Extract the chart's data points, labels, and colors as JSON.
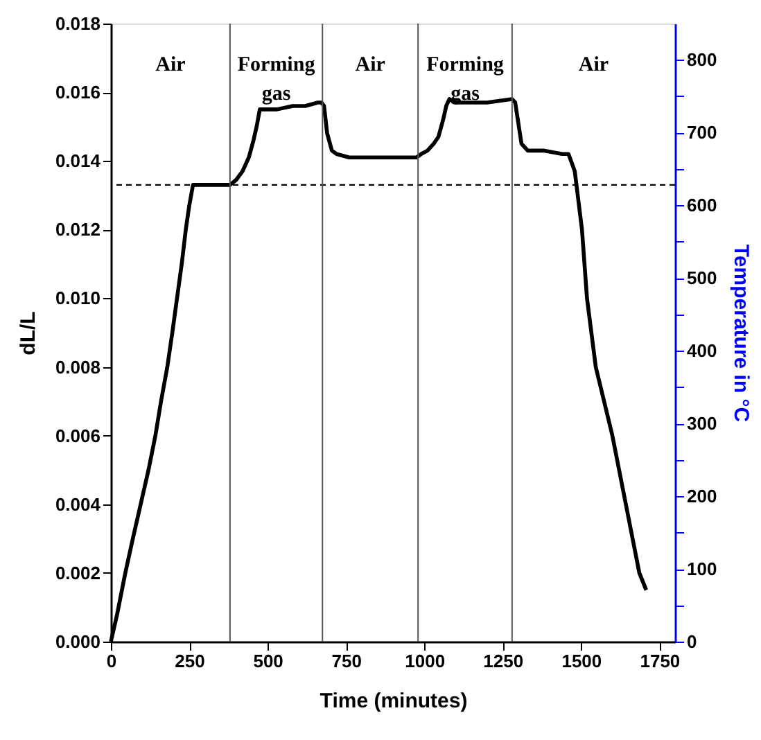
{
  "chart_data": {
    "type": "line",
    "xlabel": "Time (minutes)",
    "ylabel": "dL/L",
    "y2label": "Temperature in  °C",
    "x": [
      0,
      20,
      46,
      70,
      95,
      120,
      142,
      160,
      180,
      196,
      211,
      226,
      239,
      250,
      262,
      300,
      380,
      400,
      420,
      440,
      455,
      465,
      475,
      500,
      530,
      580,
      620,
      660,
      672,
      680,
      690,
      705,
      720,
      760,
      800,
      880,
      960,
      975,
      990,
      1010,
      1030,
      1045,
      1060,
      1070,
      1080,
      1100,
      1150,
      1200,
      1280,
      1290,
      1300,
      1310,
      1330,
      1380,
      1440,
      1460,
      1480,
      1503,
      1519,
      1547,
      1600,
      1643,
      1686,
      1708
    ],
    "series": [
      {
        "color": "#000000",
        "values": [
          0,
          0.0008,
          0.002,
          0.003,
          0.004,
          0.005,
          0.006,
          0.007,
          0.008,
          0.009,
          0.01,
          0.011,
          0.012,
          0.0127,
          0.0133,
          0.0133,
          0.0133,
          0.01345,
          0.0137,
          0.0141,
          0.0146,
          0.015,
          0.0155,
          0.0155,
          0.0155,
          0.0156,
          0.0156,
          0.0157,
          0.0157,
          0.0156,
          0.0148,
          0.0143,
          0.0142,
          0.0141,
          0.0141,
          0.0141,
          0.0141,
          0.0141,
          0.0142,
          0.0143,
          0.0145,
          0.0147,
          0.0152,
          0.0156,
          0.0158,
          0.0157,
          0.0157,
          0.0157,
          0.0158,
          0.0157,
          0.0151,
          0.0145,
          0.0143,
          0.0143,
          0.0142,
          0.0142,
          0.0137,
          0.012,
          0.01,
          0.008,
          0.006,
          0.004,
          0.002,
          0.0015
        ]
      }
    ],
    "xlim": [
      0,
      1800
    ],
    "xticks": [
      0,
      250,
      500,
      750,
      1000,
      1250,
      1500,
      1750
    ],
    "ylim": [
      0,
      0.018
    ],
    "yticks": [
      {
        "value": 0,
        "label": "0.000"
      },
      0.002,
      0.004,
      0.006,
      0.008,
      {
        "value": 0.01,
        "label": "0.010"
      },
      0.012,
      0.014,
      0.016,
      0.018
    ],
    "y2lim": [
      0,
      850
    ],
    "y2ticks": [
      0,
      {
        "value": 50,
        "label": null
      },
      100,
      {
        "value": 150,
        "label": null
      },
      200,
      {
        "value": 250,
        "label": null
      },
      300,
      {
        "value": 350,
        "label": null
      },
      400,
      {
        "value": 450,
        "label": null
      },
      500,
      {
        "value": 550,
        "label": null
      },
      600,
      {
        "value": 650,
        "label": null
      },
      700,
      {
        "value": 750,
        "label": null
      },
      800
    ],
    "ref_lines": [
      {
        "axis": "y",
        "value": 0.0133,
        "line_style": "dashed",
        "color": "#000000"
      },
      {
        "axis": "x",
        "value": 380,
        "color": "#555555"
      },
      {
        "axis": "x",
        "value": 675,
        "color": "#555555"
      },
      {
        "axis": "x",
        "value": 980,
        "color": "#555555"
      },
      {
        "axis": "x",
        "value": 1280,
        "color": "#555555"
      }
    ],
    "annotations": [
      "Air",
      "Forming gas",
      "Air",
      "Forming gas",
      "Air"
    ],
    "grid": false,
    "marker": "none",
    "line_style": "solid"
  }
}
